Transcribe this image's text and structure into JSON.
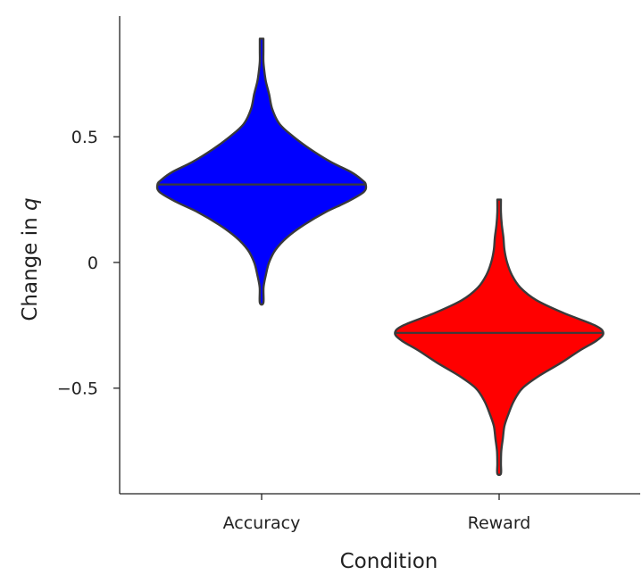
{
  "chart_data": {
    "type": "violin",
    "xlabel": "Condition",
    "ylabel": "Change in q",
    "ylabel_prefix": "Change in ",
    "ylabel_var": "q",
    "categories": [
      "Accuracy",
      "Reward"
    ],
    "ylim": [
      -0.92,
      0.98
    ],
    "yticks": [
      {
        "value": 0.5,
        "label": "0.5"
      },
      {
        "value": 0,
        "label": "0"
      },
      {
        "value": -0.5,
        "label": "−0.5"
      }
    ],
    "grid": false,
    "legend": "none",
    "series": [
      {
        "category": "Accuracy",
        "color": "#0000ff",
        "median": 0.31,
        "min": -0.16,
        "max": 0.89,
        "profile": [
          [
            0.89,
            0.0
          ],
          [
            0.84,
            0.0
          ],
          [
            0.8,
            0.016
          ],
          [
            0.76,
            0.026
          ],
          [
            0.72,
            0.04
          ],
          [
            0.67,
            0.07
          ],
          [
            0.61,
            0.1
          ],
          [
            0.55,
            0.17
          ],
          [
            0.5,
            0.3
          ],
          [
            0.45,
            0.46
          ],
          [
            0.4,
            0.65
          ],
          [
            0.36,
            0.84
          ],
          [
            0.33,
            0.94
          ],
          [
            0.31,
            0.98
          ],
          [
            0.28,
            0.96
          ],
          [
            0.24,
            0.8
          ],
          [
            0.2,
            0.6
          ],
          [
            0.15,
            0.4
          ],
          [
            0.1,
            0.24
          ],
          [
            0.05,
            0.13
          ],
          [
            0.0,
            0.07
          ],
          [
            -0.05,
            0.04
          ],
          [
            -0.1,
            0.018
          ],
          [
            -0.16,
            0.0
          ]
        ]
      },
      {
        "category": "Reward",
        "color": "#ff0000",
        "median": -0.28,
        "min": -0.84,
        "max": 0.25,
        "profile": [
          [
            0.25,
            0.0
          ],
          [
            0.2,
            0.008
          ],
          [
            0.15,
            0.025
          ],
          [
            0.1,
            0.04
          ],
          [
            0.05,
            0.05
          ],
          [
            0.0,
            0.075
          ],
          [
            -0.05,
            0.12
          ],
          [
            -0.1,
            0.2
          ],
          [
            -0.15,
            0.35
          ],
          [
            -0.2,
            0.6
          ],
          [
            -0.25,
            0.9
          ],
          [
            -0.28,
            0.98
          ],
          [
            -0.31,
            0.92
          ],
          [
            -0.35,
            0.76
          ],
          [
            -0.4,
            0.58
          ],
          [
            -0.45,
            0.38
          ],
          [
            -0.5,
            0.22
          ],
          [
            -0.55,
            0.14
          ],
          [
            -0.6,
            0.09
          ],
          [
            -0.65,
            0.05
          ],
          [
            -0.7,
            0.035
          ],
          [
            -0.75,
            0.02
          ],
          [
            -0.8,
            0.01
          ],
          [
            -0.84,
            0.0
          ]
        ]
      }
    ]
  }
}
